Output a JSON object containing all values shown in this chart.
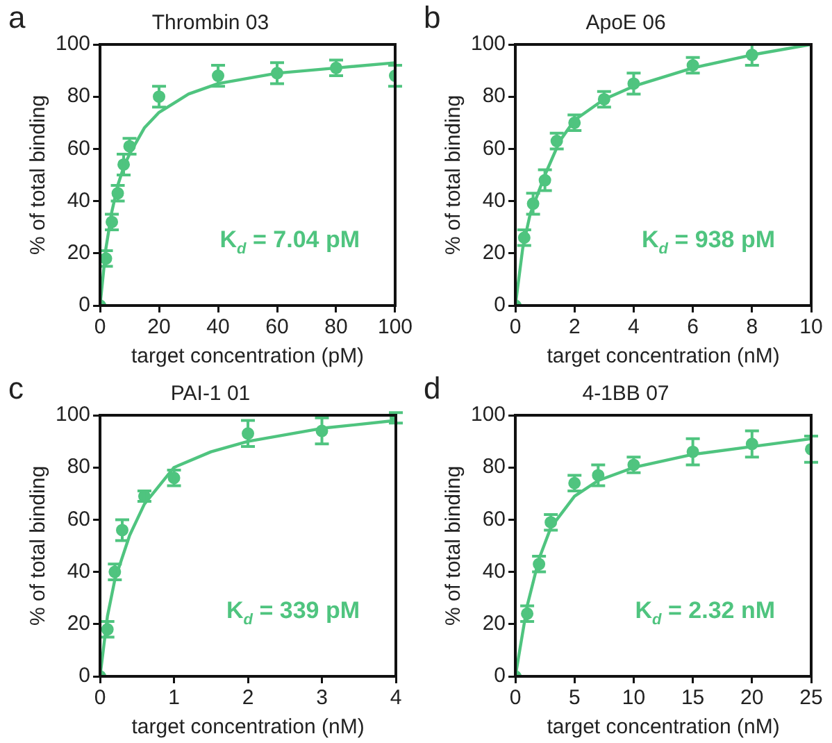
{
  "chart_data": [
    {
      "type": "scatter",
      "title": "Thrombin 03",
      "xlabel": "target concentration (pM)",
      "ylabel": "% of total binding",
      "xlim": [
        0,
        100
      ],
      "xticks": [
        0,
        20,
        40,
        60,
        80,
        100
      ],
      "ylim": [
        0,
        100
      ],
      "yticks": [
        0,
        20,
        40,
        60,
        80,
        100
      ],
      "grid": false,
      "legend": false,
      "marker": "circle",
      "annotations": [
        "a",
        "K$_{d}$ = 7.04 pM"
      ],
      "series": [
        {
          "type": "scatter",
          "color": "#4fc47f",
          "x": [
            0,
            2,
            4,
            6,
            8,
            10,
            20,
            40,
            60,
            80,
            100
          ],
          "values": [
            0,
            18,
            32,
            43,
            54,
            61,
            80,
            88,
            89,
            91,
            88
          ],
          "errors": [
            null,
            3,
            3,
            3,
            4,
            3,
            4,
            4,
            4,
            3,
            4
          ]
        },
        {
          "type": "line",
          "color": "#4fc47f",
          "marker": "none",
          "x": [
            0,
            2,
            4,
            6,
            8,
            10,
            15,
            20,
            30,
            40,
            60,
            80,
            100
          ],
          "values": [
            0,
            22,
            36,
            46,
            53,
            58,
            68,
            74,
            81,
            85,
            89,
            91,
            93
          ]
        }
      ]
    },
    {
      "type": "scatter",
      "title": "ApoE 06",
      "xlabel": "target concentration (nM)",
      "ylabel": "% of total binding",
      "xlim": [
        0,
        10
      ],
      "xticks": [
        0,
        2,
        4,
        6,
        8,
        10
      ],
      "ylim": [
        0,
        100
      ],
      "yticks": [
        0,
        20,
        40,
        60,
        80,
        100
      ],
      "grid": false,
      "legend": false,
      "marker": "circle",
      "annotations": [
        "b",
        "K$_{d}$ = 938 pM"
      ],
      "series": [
        {
          "type": "scatter",
          "color": "#4fc47f",
          "x": [
            0,
            0.3,
            0.6,
            1,
            1.4,
            2,
            3,
            4,
            6,
            8
          ],
          "values": [
            0,
            26,
            39,
            48,
            63,
            70,
            79,
            85,
            92,
            96
          ],
          "errors": [
            null,
            3,
            4,
            4,
            3,
            3,
            3,
            4,
            3,
            4
          ]
        },
        {
          "type": "line",
          "color": "#4fc47f",
          "marker": "none",
          "x": [
            0,
            0.25,
            0.5,
            1,
            1.5,
            2,
            3,
            4,
            6,
            8,
            10
          ],
          "values": [
            0,
            22,
            35,
            50,
            63,
            71,
            79,
            84,
            91,
            96,
            100
          ]
        }
      ]
    },
    {
      "type": "scatter",
      "title": "PAI-1 01",
      "xlabel": "target concentration (nM)",
      "ylabel": "% of total binding",
      "xlim": [
        0,
        4
      ],
      "xticks": [
        0,
        1,
        2,
        3,
        4
      ],
      "ylim": [
        0,
        100
      ],
      "yticks": [
        0,
        20,
        40,
        60,
        80,
        100
      ],
      "grid": false,
      "legend": false,
      "marker": "circle",
      "annotations": [
        "c",
        "K$_{d}$ = 339 pM"
      ],
      "series": [
        {
          "type": "scatter",
          "color": "#4fc47f",
          "x": [
            0,
            0.1,
            0.2,
            0.3,
            0.6,
            1,
            2,
            3,
            4
          ],
          "values": [
            0,
            18,
            40,
            56,
            69,
            76,
            93,
            94,
            99
          ],
          "errors": [
            null,
            3,
            3,
            4,
            2,
            3,
            5,
            5,
            2
          ]
        },
        {
          "type": "line",
          "color": "#4fc47f",
          "marker": "none",
          "x": [
            0,
            0.1,
            0.2,
            0.4,
            0.6,
            1,
            1.5,
            2,
            3,
            4
          ],
          "values": [
            0,
            23,
            37,
            54,
            66,
            80,
            86,
            90,
            95,
            98
          ]
        }
      ]
    },
    {
      "type": "scatter",
      "title": "4-1BB 07",
      "xlabel": "target concentration (nM)",
      "ylabel": "% of total binding",
      "xlim": [
        0,
        25
      ],
      "xticks": [
        0,
        5,
        10,
        15,
        20,
        25
      ],
      "ylim": [
        0,
        100
      ],
      "yticks": [
        0,
        20,
        40,
        60,
        80,
        100
      ],
      "grid": false,
      "legend": false,
      "marker": "circle",
      "annotations": [
        "d",
        "K$_{d}$ = 2.32 nM"
      ],
      "series": [
        {
          "type": "scatter",
          "color": "#4fc47f",
          "x": [
            0,
            1,
            2,
            3,
            5,
            7,
            10,
            15,
            20,
            25
          ],
          "values": [
            0,
            24,
            43,
            59,
            74,
            77,
            81,
            86,
            89,
            87
          ],
          "errors": [
            null,
            3,
            3,
            3,
            3,
            4,
            3,
            5,
            5,
            5
          ]
        },
        {
          "type": "line",
          "color": "#4fc47f",
          "marker": "none",
          "x": [
            0,
            1,
            2,
            3,
            5,
            7,
            10,
            15,
            20,
            25
          ],
          "values": [
            0,
            27,
            45,
            57,
            69,
            75,
            80,
            85,
            88,
            91
          ]
        }
      ]
    }
  ]
}
